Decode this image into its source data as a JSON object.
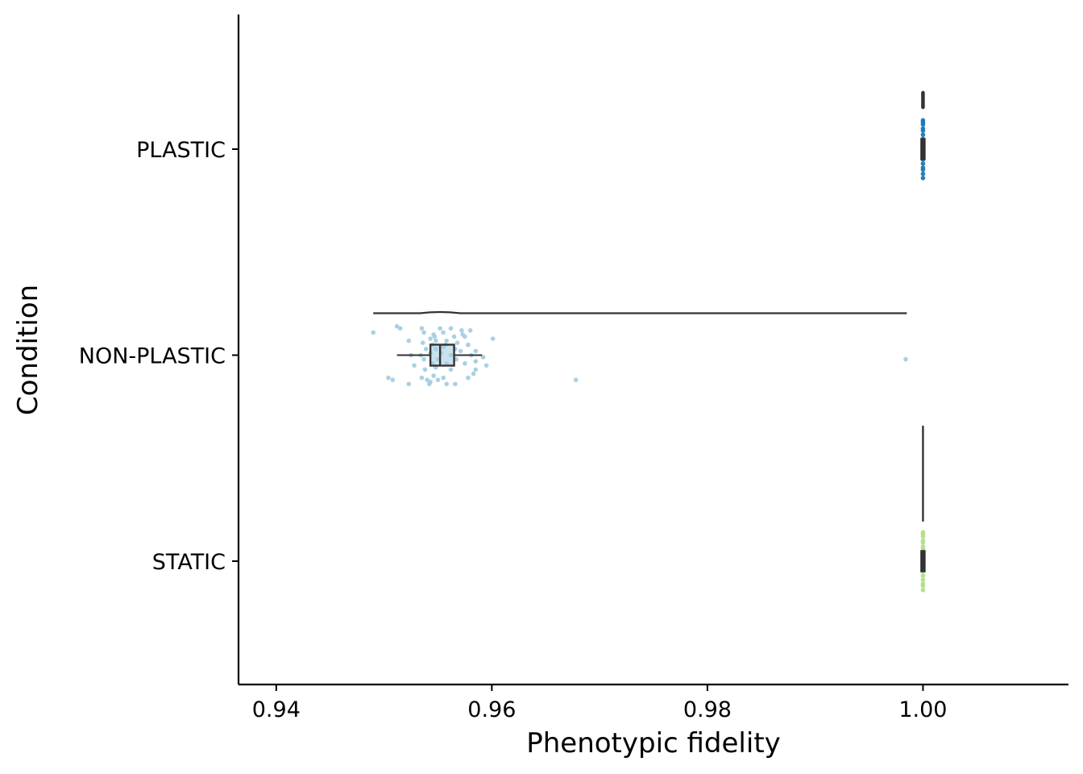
{
  "chart_data": {
    "type": "raincloud",
    "orientation": "horizontal",
    "title": "",
    "xlabel": "Phenotypic fidelity",
    "ylabel": "Condition",
    "xlim": [
      0.9365,
      1.0135
    ],
    "x_ticks": [
      0.94,
      0.96,
      0.98,
      1.0
    ],
    "x_tick_labels": [
      "0.94",
      "0.96",
      "0.98",
      "1.00"
    ],
    "categories": [
      "PLASTIC",
      "NON-PLASTIC",
      "STATIC"
    ],
    "grid": false,
    "legend": "none",
    "series": [
      {
        "category": "PLASTIC",
        "color": "#1f78b4",
        "box": {
          "min": 1.0,
          "q1": 1.0,
          "median": 1.0,
          "q3": 1.0,
          "max": 1.0
        },
        "density_range": [
          0.99995,
          1.0
        ],
        "points": [
          [
            1.0,
            -0.14
          ],
          [
            1.0,
            -0.13
          ],
          [
            1.0,
            -0.12
          ],
          [
            1.0,
            -0.1
          ],
          [
            1.0,
            -0.09
          ],
          [
            1.0,
            -0.07
          ],
          [
            1.0,
            -0.05
          ],
          [
            1.0,
            -0.04
          ],
          [
            1.0,
            -0.02
          ],
          [
            1.0,
            0.0
          ],
          [
            1.0,
            0.01
          ],
          [
            1.0,
            0.03
          ],
          [
            1.0,
            0.05
          ],
          [
            1.0,
            0.07
          ],
          [
            1.0,
            0.09
          ],
          [
            1.0,
            0.1
          ],
          [
            1.0,
            0.12
          ],
          [
            1.0,
            0.14
          ]
        ]
      },
      {
        "category": "NON-PLASTIC",
        "color": "#a6cee3",
        "box": {
          "min": 0.9512,
          "q1": 0.9543,
          "median": 0.9552,
          "q3": 0.9565,
          "max": 0.9591
        },
        "density_range": [
          0.949,
          0.9985
        ],
        "points": [
          [
            0.949,
            -0.11
          ],
          [
            0.9512,
            -0.14
          ],
          [
            0.9515,
            -0.13
          ],
          [
            0.9535,
            -0.13
          ],
          [
            0.9537,
            -0.11
          ],
          [
            0.9552,
            -0.13
          ],
          [
            0.9562,
            -0.13
          ],
          [
            0.9572,
            -0.12
          ],
          [
            0.958,
            -0.12
          ],
          [
            0.9546,
            -0.1
          ],
          [
            0.9555,
            -0.11
          ],
          [
            0.9523,
            -0.07
          ],
          [
            0.9547,
            -0.09
          ],
          [
            0.9565,
            -0.09
          ],
          [
            0.9575,
            -0.09
          ],
          [
            0.9573,
            -0.1
          ],
          [
            0.9543,
            -0.08
          ],
          [
            0.9548,
            -0.07
          ],
          [
            0.9558,
            -0.07
          ],
          [
            0.9536,
            -0.06
          ],
          [
            0.9545,
            -0.05
          ],
          [
            0.9557,
            -0.05
          ],
          [
            0.9568,
            -0.06
          ],
          [
            0.9578,
            -0.05
          ],
          [
            0.9555,
            -0.04
          ],
          [
            0.9539,
            -0.03
          ],
          [
            0.9548,
            -0.03
          ],
          [
            0.9566,
            -0.03
          ],
          [
            0.9571,
            -0.02
          ],
          [
            0.9585,
            -0.02
          ],
          [
            0.9601,
            -0.08
          ],
          [
            0.9543,
            -0.01
          ],
          [
            0.9553,
            -0.01
          ],
          [
            0.9534,
            0.0
          ],
          [
            0.9525,
            0.0
          ],
          [
            0.9562,
            0.0
          ],
          [
            0.9581,
            0.0
          ],
          [
            0.9592,
            0.01
          ],
          [
            0.9537,
            0.02
          ],
          [
            0.955,
            0.02
          ],
          [
            0.9567,
            0.02
          ],
          [
            0.9585,
            0.03
          ],
          [
            0.9545,
            0.04
          ],
          [
            0.9558,
            0.04
          ],
          [
            0.9575,
            0.04
          ],
          [
            0.9595,
            0.05
          ],
          [
            0.9528,
            0.05
          ],
          [
            0.9548,
            0.06
          ],
          [
            0.9538,
            0.07
          ],
          [
            0.9562,
            0.07
          ],
          [
            0.9585,
            0.07
          ],
          [
            0.9504,
            0.11
          ],
          [
            0.9508,
            0.12
          ],
          [
            0.9535,
            0.11
          ],
          [
            0.954,
            0.12
          ],
          [
            0.955,
            0.12
          ],
          [
            0.9546,
            0.1
          ],
          [
            0.9555,
            0.11
          ],
          [
            0.9578,
            0.11
          ],
          [
            0.9583,
            0.09
          ],
          [
            0.9523,
            0.14
          ],
          [
            0.9542,
            0.14
          ],
          [
            0.9558,
            0.14
          ],
          [
            0.9566,
            0.14
          ],
          [
            0.9543,
            0.13
          ],
          [
            0.9678,
            0.12
          ],
          [
            0.9984,
            0.02
          ]
        ]
      },
      {
        "category": "STATIC",
        "color": "#b2df8a",
        "box": {
          "min": 1.0,
          "q1": 1.0,
          "median": 1.0,
          "q3": 1.0,
          "max": 1.0
        },
        "density_range": [
          0.99995,
          1.0
        ],
        "points": [
          [
            1.0,
            -0.14
          ],
          [
            1.0,
            -0.13
          ],
          [
            1.0,
            -0.12
          ],
          [
            1.0,
            -0.1
          ],
          [
            1.0,
            -0.09
          ],
          [
            1.0,
            -0.07
          ],
          [
            1.0,
            -0.06
          ],
          [
            1.0,
            -0.04
          ],
          [
            1.0,
            -0.03
          ],
          [
            1.0,
            -0.01
          ],
          [
            1.0,
            0.0
          ],
          [
            1.0,
            0.02
          ],
          [
            1.0,
            0.04
          ],
          [
            1.0,
            0.05
          ],
          [
            1.0,
            0.07
          ],
          [
            1.0,
            0.09
          ],
          [
            1.0,
            0.11
          ],
          [
            1.0,
            0.12
          ],
          [
            1.0,
            0.14
          ]
        ]
      }
    ]
  }
}
